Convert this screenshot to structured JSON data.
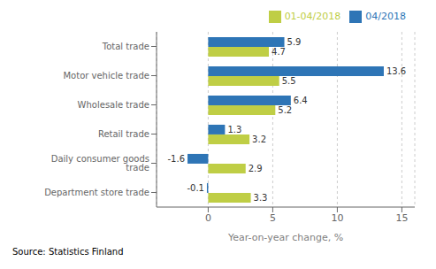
{
  "chart_data": {
    "type": "bar",
    "orientation": "horizontal",
    "categories": [
      "Total trade",
      "Motor vehicle trade",
      "Wholesale trade",
      "Retail trade",
      "Daily consumer goods trade",
      "Department store trade"
    ],
    "series": [
      {
        "name": "04/2018",
        "color": "#2E75B6",
        "values": [
          5.9,
          13.6,
          6.4,
          1.3,
          -1.6,
          -0.1
        ]
      },
      {
        "name": "01-04/2018",
        "color": "#BFCE45",
        "values": [
          4.7,
          5.5,
          5.2,
          3.2,
          2.9,
          3.3
        ]
      }
    ],
    "xlabel": "Year-on-year change, %",
    "xlim": [
      -4,
      16
    ],
    "xticks": [
      0,
      5,
      10,
      15
    ],
    "grid": true,
    "legend": "upper right",
    "data_labels": true,
    "annotations": [
      "Source: Statistics Finland"
    ]
  }
}
